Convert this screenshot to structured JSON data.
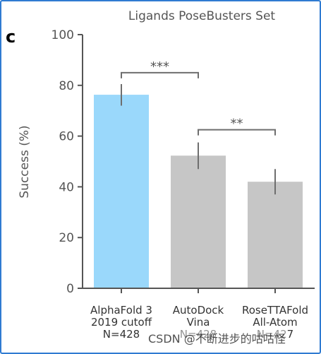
{
  "panel_label": "c",
  "watermark": "CSDN @不断进步的咕咕怪",
  "colors": {
    "highlight_bar": "#9ad8fb",
    "muted_bar": "#c6c6c6",
    "error_bar": "#6e6e6e",
    "axis": "#555555",
    "text": "#555555",
    "frame": "#2f7bd1"
  },
  "chart_data": {
    "type": "bar",
    "title": "Ligands PoseBusters Set",
    "ylabel": "Success (%)",
    "xlabel": "",
    "ylim": [
      0,
      100
    ],
    "yticks": [
      0,
      20,
      40,
      60,
      80,
      100
    ],
    "grid": false,
    "categories": [
      {
        "lines": [
          "AlphaFold 3",
          "2019 cutoff",
          "N=428"
        ]
      },
      {
        "lines": [
          "AutoDock",
          "Vina",
          "N=428"
        ]
      },
      {
        "lines": [
          "RoseTTAFold",
          "All-Atom",
          "N=427"
        ]
      }
    ],
    "values": [
      76.3,
      52.3,
      42.0
    ],
    "error_low": [
      72.0,
      47.0,
      37.0
    ],
    "error_high": [
      80.5,
      57.5,
      47.0
    ],
    "highlight": [
      true,
      false,
      false
    ],
    "significance": [
      {
        "from": 0,
        "to": 1,
        "label": "***",
        "y": 85
      },
      {
        "from": 1,
        "to": 2,
        "label": "**",
        "y": 62.5
      }
    ]
  }
}
